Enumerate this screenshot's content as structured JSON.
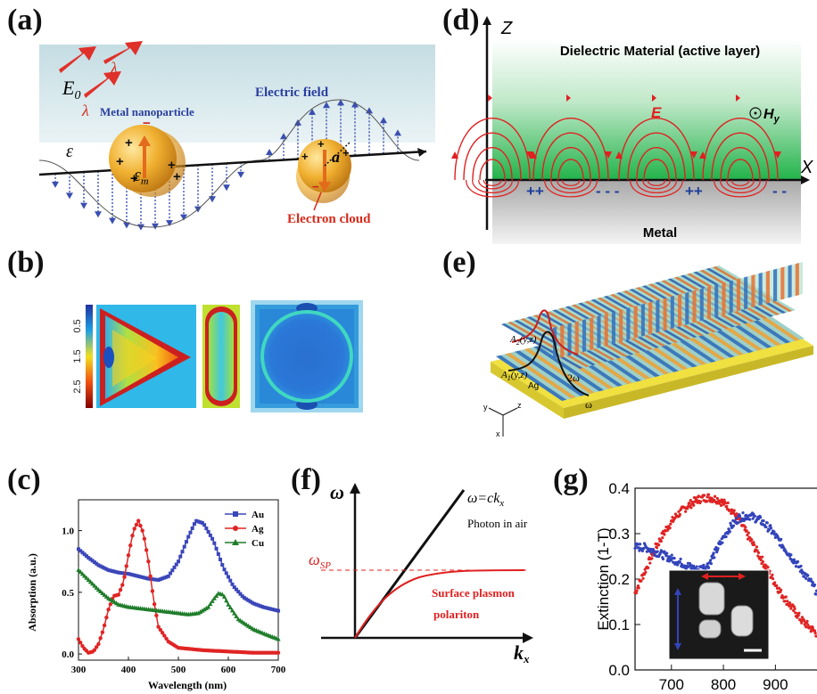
{
  "panels": {
    "a": {
      "label": "(a)",
      "e0": "E",
      "e0_sub": "0",
      "lambda": "λ",
      "metal_nanoparticle": "Metal nanoparticle",
      "electric_field": "Electric field",
      "epsilon": "ε",
      "epsilon_m": "ε",
      "epsilon_m_sub": "m",
      "radius": "a",
      "electron_cloud": "Electron cloud"
    },
    "b": {
      "label": "(b)",
      "colorbar_ticks": [
        "0.5",
        "1.5",
        "2.5"
      ]
    },
    "c": {
      "label": "(c)",
      "ylabel": "Absorption (a.u.)",
      "xlabel": "Wavelength (nm)"
    },
    "d": {
      "label": "(d)",
      "z_axis": "Z",
      "x_axis": "X",
      "dielectric": "Dielectric Material (active layer)",
      "metal": "Metal",
      "e_field": "E",
      "h_field": "H",
      "h_sub": "y",
      "charges": [
        "++",
        "- - -",
        "++",
        "- -"
      ]
    },
    "e": {
      "label": "(e)",
      "a2": "A",
      "a2_sub": "2",
      "a2_args": "(y,z)",
      "a1": "A",
      "a1_sub": "1",
      "a1_args": "(y,z)",
      "ag": "Ag",
      "two_omega": "2ω",
      "omega": "ω",
      "axis_y": "y",
      "axis_z": "z",
      "axis_x": "x"
    },
    "f": {
      "label": "(f)",
      "y_axis": "ω",
      "x_axis": "k",
      "x_axis_sub": "x",
      "omega_sp": "ω",
      "omega_sp_sub": "SP",
      "light_line": "ω=ck",
      "light_line_sub": "x",
      "photon": "Photon in air",
      "spp_line1": "Surface plasmon",
      "spp_line2": "polariton"
    },
    "g": {
      "label": "(g)",
      "ylabel": "Extinction (1-T)"
    }
  },
  "colors": {
    "au": "#3b46b8",
    "ag": "#e02424",
    "cu": "#1e7d2a",
    "red": "#e02020",
    "blue": "#3344bb",
    "green": "#22b34a"
  },
  "chart_data": [
    {
      "type": "line",
      "panel": "c",
      "xlabel": "Wavelength (nm)",
      "ylabel": "Absorption (a.u.)",
      "xlim": [
        300,
        700
      ],
      "ylim": [
        -0.05,
        1.25
      ],
      "xticks": [
        300,
        400,
        500,
        600,
        700
      ],
      "yticks": [
        0.0,
        0.5,
        1.0
      ],
      "legend": "top-right",
      "series": [
        {
          "name": "Au",
          "color": "#3b46b8",
          "marker": "square",
          "x": [
            300,
            320,
            340,
            360,
            380,
            400,
            420,
            440,
            460,
            480,
            500,
            520,
            535,
            550,
            570,
            590,
            610,
            630,
            650,
            670,
            700
          ],
          "y": [
            0.85,
            0.78,
            0.72,
            0.68,
            0.66,
            0.65,
            0.63,
            0.61,
            0.6,
            0.63,
            0.75,
            0.95,
            1.08,
            1.06,
            0.92,
            0.7,
            0.55,
            0.46,
            0.41,
            0.38,
            0.35
          ]
        },
        {
          "name": "Ag",
          "color": "#e02424",
          "marker": "circle",
          "x": [
            300,
            310,
            320,
            330,
            340,
            350,
            360,
            370,
            380,
            390,
            400,
            410,
            420,
            430,
            440,
            450,
            460,
            480,
            500,
            550,
            600,
            650,
            700
          ],
          "y": [
            0.12,
            0.05,
            0.01,
            0.02,
            0.08,
            0.2,
            0.36,
            0.47,
            0.48,
            0.58,
            0.8,
            1.0,
            1.08,
            0.98,
            0.75,
            0.45,
            0.22,
            0.1,
            0.05,
            0.03,
            0.02,
            0.01,
            0.01
          ]
        },
        {
          "name": "Cu",
          "color": "#1e7d2a",
          "marker": "triangle",
          "x": [
            300,
            320,
            340,
            360,
            380,
            400,
            420,
            440,
            460,
            480,
            500,
            520,
            540,
            560,
            570,
            580,
            590,
            600,
            620,
            650,
            680,
            700
          ],
          "y": [
            0.68,
            0.6,
            0.52,
            0.45,
            0.4,
            0.38,
            0.37,
            0.36,
            0.35,
            0.34,
            0.33,
            0.32,
            0.33,
            0.38,
            0.44,
            0.49,
            0.48,
            0.4,
            0.28,
            0.2,
            0.15,
            0.12
          ]
        }
      ]
    },
    {
      "type": "scatter",
      "panel": "g",
      "ylabel": "Extinction (1-T)",
      "xlim": [
        630,
        980
      ],
      "ylim": [
        0.0,
        0.4
      ],
      "xticks": [
        700,
        800,
        900
      ],
      "yticks": [
        0.0,
        0.1,
        0.2,
        0.3,
        0.4
      ],
      "series": [
        {
          "color": "#e02424",
          "x": [
            630,
            650,
            670,
            690,
            710,
            730,
            750,
            770,
            790,
            810,
            830,
            850,
            870,
            890,
            910,
            930,
            950,
            970,
            980
          ],
          "y": [
            0.17,
            0.22,
            0.27,
            0.31,
            0.34,
            0.36,
            0.375,
            0.38,
            0.375,
            0.36,
            0.33,
            0.29,
            0.25,
            0.21,
            0.17,
            0.14,
            0.11,
            0.09,
            0.08
          ]
        },
        {
          "color": "#3344bb",
          "x": [
            630,
            650,
            670,
            690,
            710,
            730,
            750,
            770,
            790,
            810,
            830,
            850,
            870,
            890,
            910,
            930,
            950,
            970,
            980
          ],
          "y": [
            0.27,
            0.27,
            0.26,
            0.25,
            0.24,
            0.23,
            0.22,
            0.23,
            0.27,
            0.31,
            0.335,
            0.34,
            0.33,
            0.31,
            0.28,
            0.25,
            0.22,
            0.19,
            0.17
          ]
        }
      ]
    }
  ]
}
